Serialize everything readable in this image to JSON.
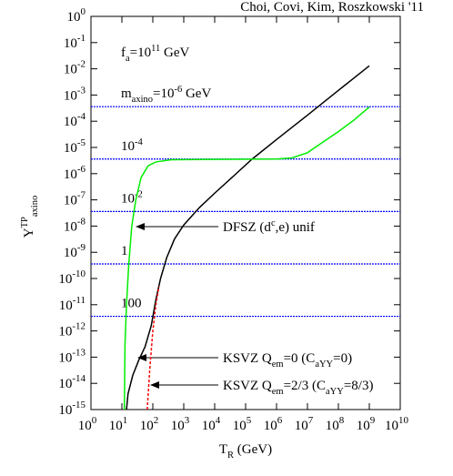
{
  "chart_data": {
    "type": "line",
    "log_x": true,
    "log_y": true,
    "grid": false,
    "credit": "Choi, Covi, Kim, Roszkowski '11",
    "annotation": [
      {
        "text": "f"
      },
      {
        "text": "a",
        "script": "sub"
      },
      {
        "text": "=10"
      },
      {
        "text": "11",
        "script": "sup"
      },
      {
        "text": " GeV"
      }
    ],
    "x_label": [
      {
        "text": "T"
      },
      {
        "text": "R",
        "script": "sub"
      },
      {
        "text": " (GeV)"
      }
    ],
    "y_label": [
      {
        "text": "Y"
      },
      {
        "text": "TP",
        "script": "sup"
      },
      {
        "text": "axino",
        "script": "sub"
      }
    ],
    "xlim": [
      1,
      10000000000.0
    ],
    "ylim": [
      1e-15,
      1
    ],
    "xticks": [
      {
        "value": 1,
        "label": "10",
        "exponent": "0"
      },
      {
        "value": 10,
        "label": "10",
        "exponent": "1"
      },
      {
        "value": 100,
        "label": "10",
        "exponent": "2"
      },
      {
        "value": 1000,
        "label": "10",
        "exponent": "3"
      },
      {
        "value": 10000,
        "label": "10",
        "exponent": "4"
      },
      {
        "value": 100000,
        "label": "10",
        "exponent": "5"
      },
      {
        "value": 1000000,
        "label": "10",
        "exponent": "6"
      },
      {
        "value": 10000000,
        "label": "10",
        "exponent": "7"
      },
      {
        "value": 100000000,
        "label": "10",
        "exponent": "8"
      },
      {
        "value": 1000000000,
        "label": "10",
        "exponent": "9"
      },
      {
        "value": 10000000000,
        "label": "10",
        "exponent": "10"
      }
    ],
    "yticks": [
      {
        "value": 1e-15,
        "label": "10",
        "exponent": "-15"
      },
      {
        "value": 1e-14,
        "label": "10",
        "exponent": "-14"
      },
      {
        "value": 1e-13,
        "label": "10",
        "exponent": "-13"
      },
      {
        "value": 1e-12,
        "label": "10",
        "exponent": "-12"
      },
      {
        "value": 1e-11,
        "label": "10",
        "exponent": "-11"
      },
      {
        "value": 1e-10,
        "label": "10",
        "exponent": "-10"
      },
      {
        "value": 1e-09,
        "label": "10",
        "exponent": "-9"
      },
      {
        "value": 1e-08,
        "label": "10",
        "exponent": "-8"
      },
      {
        "value": 1e-07,
        "label": "10",
        "exponent": "-7"
      },
      {
        "value": 1e-06,
        "label": "10",
        "exponent": "-6"
      },
      {
        "value": 1e-05,
        "label": "10",
        "exponent": "-5"
      },
      {
        "value": 0.0001,
        "label": "10",
        "exponent": "-4"
      },
      {
        "value": 0.001,
        "label": "10",
        "exponent": "-3"
      },
      {
        "value": 0.01,
        "label": "10",
        "exponent": "-2"
      },
      {
        "value": 0.1,
        "label": "10",
        "exponent": "-1"
      },
      {
        "value": 1,
        "label": "10",
        "exponent": "0"
      }
    ],
    "reference_lines": [
      {
        "value": 0.00036,
        "color": "#0000ff",
        "label": [
          {
            "text": "m"
          },
          {
            "text": "axino",
            "script": "sub"
          },
          {
            "text": "=10"
          },
          {
            "text": "-6",
            "script": "sup"
          },
          {
            "text": " GeV"
          }
        ]
      },
      {
        "value": 3.6e-06,
        "color": "#0000ff",
        "label": [
          {
            "text": "10"
          },
          {
            "text": "-4",
            "script": "sup"
          }
        ]
      },
      {
        "value": 3.6e-08,
        "color": "#0000ff",
        "label": [
          {
            "text": "10"
          },
          {
            "text": "-2",
            "script": "sup"
          }
        ]
      },
      {
        "value": 3.6e-10,
        "color": "#0000ff",
        "label": [
          {
            "text": "1"
          }
        ]
      },
      {
        "value": 3.6e-12,
        "color": "#0000ff",
        "label": [
          {
            "text": "100"
          }
        ]
      }
    ],
    "series": [
      {
        "color": "#000000",
        "dash": "solid",
        "label": [
          {
            "text": "KSVZ Q"
          },
          {
            "text": "em",
            "script": "sub"
          },
          {
            "text": "=0 (C"
          },
          {
            "text": "aYY",
            "script": "sub"
          },
          {
            "text": "=0)"
          }
        ],
        "x": [
          14.1,
          15.8,
          22.4,
          35.5,
          56.2,
          89.1,
          126,
          178,
          282,
          501,
          1000,
          3162,
          10000,
          39811,
          158489,
          1000000,
          10000000,
          100000000,
          1000000000
        ],
        "values": [
          1e-15,
          4e-15,
          2e-14,
          7.9e-14,
          2.5e-13,
          1.6e-12,
          1.6e-11,
          1e-10,
          6.3e-10,
          3.2e-09,
          1.1e-08,
          5e-08,
          1.8e-07,
          7.9e-07,
          3.5e-06,
          2e-05,
          0.00017,
          0.0015,
          0.013
        ]
      },
      {
        "color": "#00ee00",
        "dash": "solid",
        "label": [
          {
            "text": "DFSZ (d"
          },
          {
            "text": "c",
            "script": "sup"
          },
          {
            "text": ",e) unif"
          }
        ],
        "x": [
          12.0,
          12.6,
          14.1,
          16.6,
          20.9,
          28.2,
          41.7,
          70.8,
          126,
          398,
          10000,
          1000000,
          3160000,
          10000000,
          31600000,
          100000000,
          316000000,
          1000000000
        ],
        "values": [
          1e-15,
          3.2e-13,
          1e-11,
          3.2e-10,
          1e-08,
          1e-07,
          7.1e-07,
          2e-06,
          2.8e-06,
          3.4e-06,
          3.5e-06,
          3.6e-06,
          4e-06,
          6.3e-06,
          1.6e-05,
          4e-05,
          0.00011,
          0.00035
        ]
      },
      {
        "color": "#ff0000",
        "dash": "dashed",
        "label": [
          {
            "text": "KSVZ Q"
          },
          {
            "text": "em",
            "script": "sub"
          },
          {
            "text": "=2/3 (C"
          },
          {
            "text": "aYY",
            "script": "sub"
          },
          {
            "text": "=8/3)"
          }
        ],
        "x": [
          66,
          79.4,
          100,
          126,
          158
        ],
        "values": [
          1e-15,
          3.2e-14,
          1e-12,
          1e-11,
          5e-11
        ]
      }
    ]
  }
}
